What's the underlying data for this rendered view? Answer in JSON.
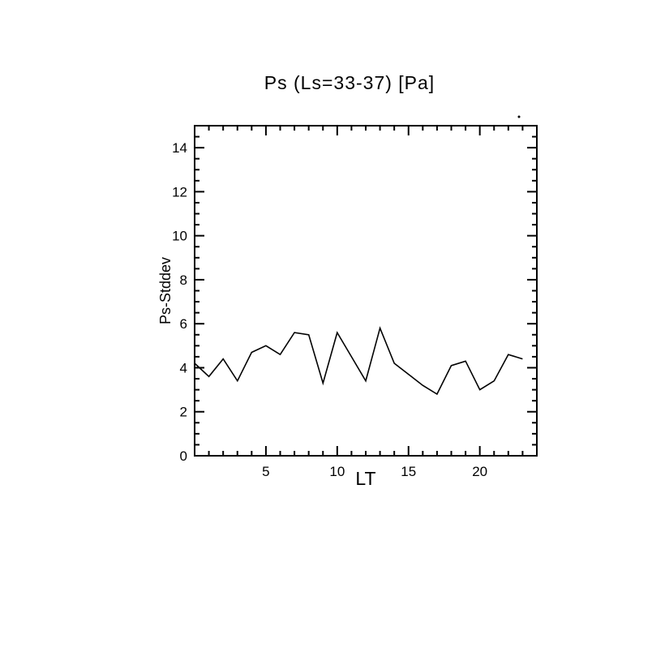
{
  "chart_data": {
    "type": "line",
    "title": "Ps (Ls=33-37) [Pa]",
    "xlabel": "LT",
    "ylabel": "Ps-Stddev",
    "x": [
      0,
      1,
      2,
      3,
      4,
      5,
      6,
      7,
      8,
      9,
      10,
      11,
      12,
      13,
      14,
      15,
      16,
      17,
      18,
      19,
      20,
      21,
      22,
      23
    ],
    "y": [
      4.2,
      3.6,
      4.4,
      3.4,
      4.7,
      5.0,
      4.6,
      5.6,
      5.5,
      3.3,
      5.6,
      4.5,
      3.4,
      5.8,
      4.2,
      3.7,
      3.2,
      2.8,
      4.1,
      4.3,
      3.0,
      3.4,
      4.6,
      4.4
    ],
    "xlim": [
      0,
      24
    ],
    "ylim": [
      0,
      15
    ],
    "x_major_ticks": [
      5,
      10,
      15,
      20
    ],
    "x_minor_step": 1,
    "y_major_ticks": [
      0,
      2,
      4,
      6,
      8,
      10,
      12,
      14
    ],
    "y_minor_step": 0.5,
    "line_color": "#000000",
    "frame_color": "#000000",
    "background": "#ffffff",
    "grid": false,
    "legend": null
  }
}
